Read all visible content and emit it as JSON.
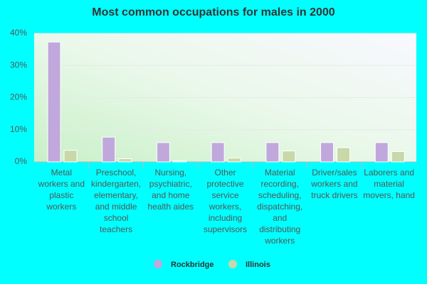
{
  "chart_data": {
    "type": "bar",
    "title": "Most common occupations for males in 2000",
    "categories": [
      "Metal workers and plastic workers",
      "Preschool, kindergarten, elementary, and middle school teachers",
      "Nursing, psychiatric, and home health aides",
      "Other protective service workers, including supervisors",
      "Material recording, scheduling, dispatching, and distributing workers",
      "Driver/sales workers and truck drivers",
      "Laborers and material movers, hand"
    ],
    "series": [
      {
        "name": "Rockbridge",
        "color": "#c0a8dc",
        "values": [
          37.3,
          7.7,
          6.0,
          6.0,
          6.0,
          6.0,
          6.0
        ]
      },
      {
        "name": "Illinois",
        "color": "#c8d8a8",
        "values": [
          3.6,
          1.0,
          0.3,
          1.2,
          3.4,
          4.4,
          3.2
        ]
      }
    ],
    "ylim": [
      0,
      40
    ],
    "yticks": [
      {
        "value": 0,
        "label": "0%"
      },
      {
        "value": 10,
        "label": "10%"
      },
      {
        "value": 20,
        "label": "20%"
      },
      {
        "value": 30,
        "label": "30%"
      },
      {
        "value": 40,
        "label": "40%"
      }
    ],
    "grid": true,
    "legend": "bottom"
  }
}
